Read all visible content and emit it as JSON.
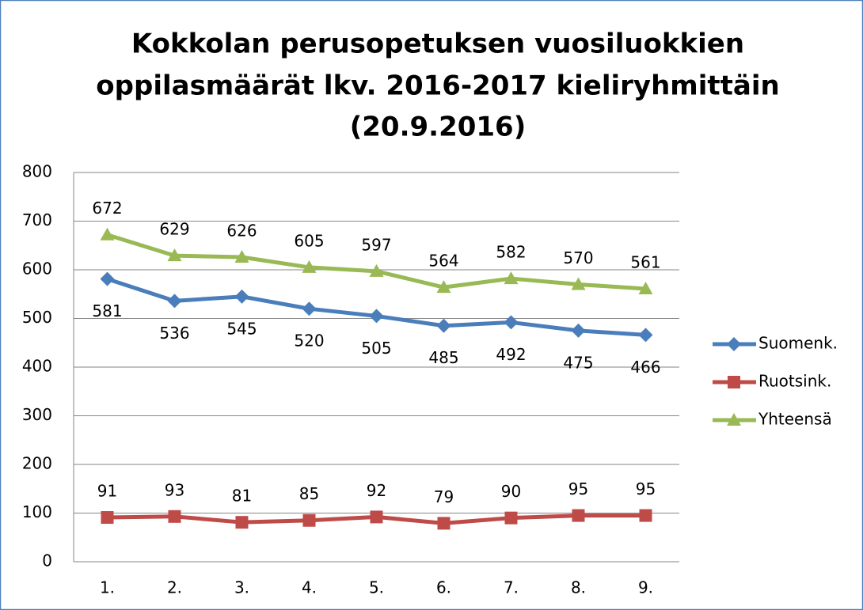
{
  "chart_data": {
    "type": "line",
    "title": [
      "Kokkolan perusopetuksen vuosiluokkien",
      "oppilasmäärät  lkv. 2016-2017 kieliryhmittäin",
      "(20.9.2016)"
    ],
    "categories": [
      "1.",
      "2.",
      "3.",
      "4.",
      "5.",
      "6.",
      "7.",
      "8.",
      "9."
    ],
    "series": [
      {
        "name": "Suomenk.",
        "color": "#4a7ebb",
        "marker": "diamond",
        "values": [
          581,
          536,
          545,
          520,
          505,
          485,
          492,
          475,
          466
        ]
      },
      {
        "name": "Ruotsink.",
        "color": "#be4b48",
        "marker": "square",
        "values": [
          91,
          93,
          81,
          85,
          92,
          79,
          90,
          95,
          95
        ]
      },
      {
        "name": "Yhteensä",
        "color": "#98b954",
        "marker": "triangle",
        "values": [
          672,
          629,
          626,
          605,
          597,
          564,
          582,
          570,
          561
        ]
      }
    ],
    "ylim": [
      0,
      800
    ],
    "yticks": [
      0,
      100,
      200,
      300,
      400,
      500,
      600,
      700,
      800
    ],
    "grid": true,
    "legend": "right"
  }
}
